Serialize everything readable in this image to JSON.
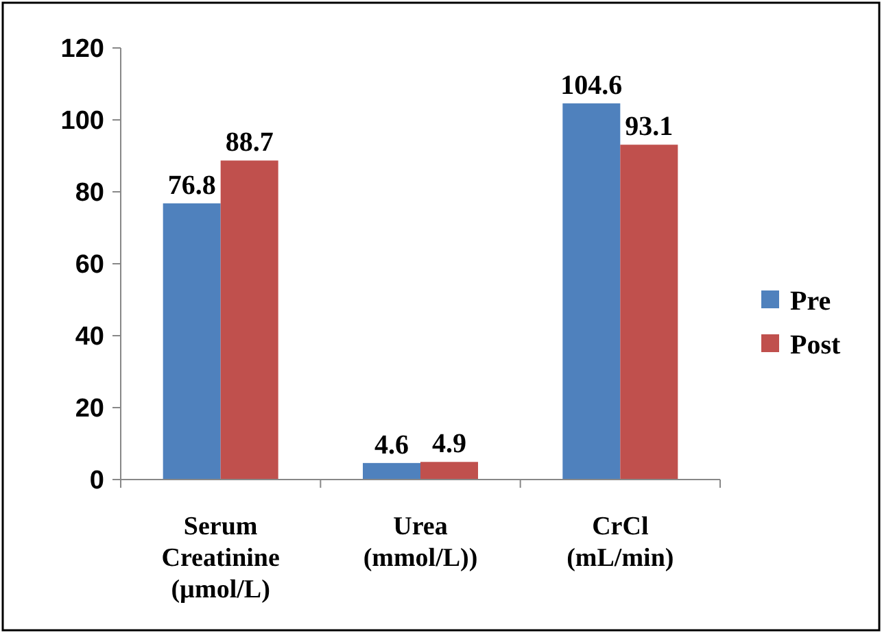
{
  "chart_data": {
    "type": "bar",
    "categories": [
      "Serum Creatinine (µmol/L)",
      "Urea (mmol/L))",
      "CrCl (mL/min)"
    ],
    "series": [
      {
        "name": "Pre",
        "color": "#4f81bd",
        "values": [
          76.8,
          4.6,
          104.6
        ]
      },
      {
        "name": "Post",
        "color": "#c0504d",
        "values": [
          88.7,
          4.9,
          93.1
        ]
      }
    ],
    "ylim": [
      0,
      120
    ],
    "yticks": [
      0,
      20,
      40,
      60,
      80,
      100,
      120
    ],
    "grid": false,
    "legend": "right",
    "data_labels": true
  }
}
